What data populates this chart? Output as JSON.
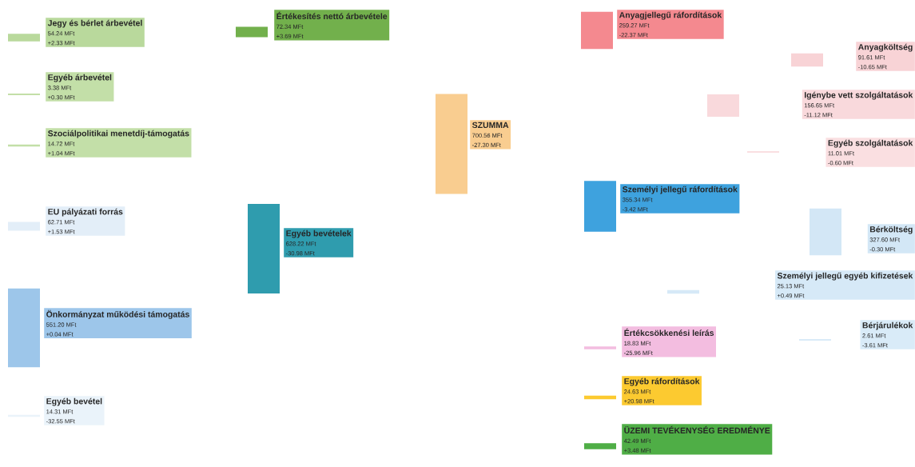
{
  "chart_data": {
    "type": "other",
    "categories": [
      "Jegy és bérlet árbevétel",
      "Egyéb árbevétel",
      "Szociálpolitikai menetdíj-támogatás",
      "EU pályázati forrás",
      "Önkormányzat működési támogatás",
      "Egyéb bevétel",
      "Értékesítés nettó árbevétele",
      "Egyéb bevételek",
      "SZUMMA",
      "Anyagjellegű ráfordítások",
      "Személyi jellegű ráfordítások",
      "Értékcsökkenési leírás",
      "Egyéb ráfordítások",
      "ÜZEMI TEVÉKENYSÉG EREDMÉNYE",
      "Anyagköltség",
      "Igénybe vett szolgáltatások",
      "Egyéb szolgáltatások",
      "Bérköltség",
      "Személyi jellegű egyéb kifizetések",
      "Bérjárulékok"
    ],
    "series": [
      {
        "colors": [
          "#b9d99c",
          "#c3dfa8",
          "#c3dfa8",
          "#e3eef8",
          "#9dc6ea",
          "#eaf3fa",
          "#72b04c",
          "#2f9cae",
          "#f9cd90",
          "#f4898f",
          "#3ea2de",
          "#f3bde0",
          "#fcca30",
          "#4fae46",
          "#f8d3d6",
          "#f9d9dc",
          "#fadfe1",
          "#d3e7f6",
          "#d6e9f7",
          "#d9ebf8"
        ],
        "values": [
          54.24,
          3.38,
          14.72,
          62.71,
          551.2,
          14.31,
          72.34,
          628.22,
          700.56,
          259.27,
          355.34,
          18.83,
          24.63,
          42.49,
          91.61,
          156.65,
          11.01,
          327.6,
          25.13,
          2.61
        ],
        "value_labels": [
          "54.24 MFt",
          "3.38 MFt",
          "14.72 MFt",
          "62.71 MFt",
          "551.20 MFt",
          "14.31 MFt",
          "72.34 MFt",
          "628.22 MFt",
          "700.56 MFt",
          "259.27 MFt",
          "355.34 MFt",
          "18.83 MFt",
          "24.63 MFt",
          "42.49 MFt",
          "91.61 MFt",
          "156.65 MFt",
          "11.01 MFt",
          "327.60 MFt",
          "25.13 MFt",
          "2.61 MFt"
        ]
      },
      {
        "values": [
          2.33,
          0.3,
          1.04,
          1.53,
          0.04,
          -32.55,
          3.69,
          -30.98,
          -27.3,
          -22.37,
          -3.42,
          -25.96,
          20.98,
          3.48,
          -10.65,
          -11.12,
          -0.6,
          -0.3,
          0.49,
          -3.61
        ],
        "value_labels": [
          "+2.33 MFt",
          "+0.30 MFt",
          "+1.04 MFt",
          "+1.53 MFt",
          "+0.04 MFt",
          "-32.55 MFt",
          "+3.69 MFt",
          "-30.98 MFt",
          "-27.30 MFt",
          "-22.37 MFt",
          "-3.42 MFt",
          "-25.96 MFt",
          "+20.98 MFt",
          "+3.48 MFt",
          "-10.65 MFt",
          "-11.12 MFt",
          "-0.60 MFt",
          "-0.30 MFt",
          "+0.49 MFt",
          "-3.61 MFt"
        ]
      }
    ]
  }
}
